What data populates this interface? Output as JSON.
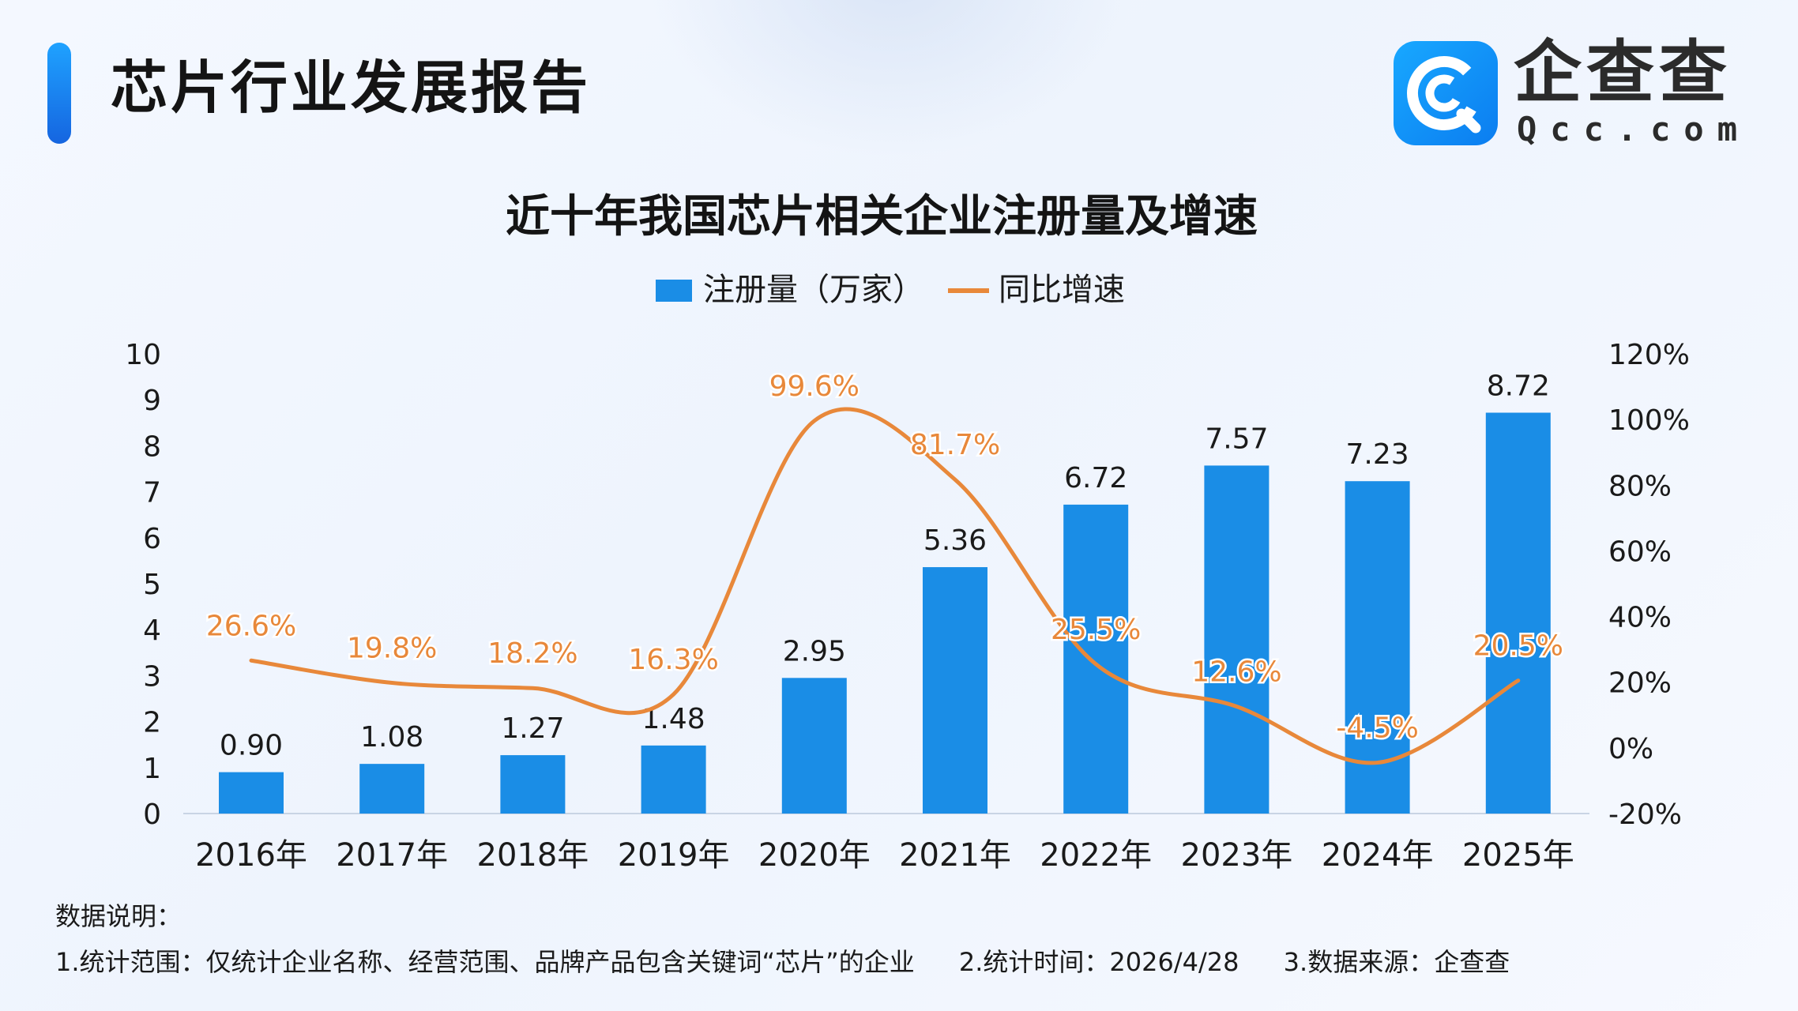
{
  "header": {
    "title": "芯片行业发展报告",
    "logo_cn": "企查查",
    "logo_en": "Qcc.com"
  },
  "colors": {
    "bar": "#1a8de6",
    "line": "#e8883a",
    "line_label": "#e8883a",
    "accent": "#1a7ef0"
  },
  "chart_data": {
    "type": "bar",
    "title": "近十年我国芯片相关企业注册量及增速",
    "categories": [
      "2016年",
      "2017年",
      "2018年",
      "2019年",
      "2020年",
      "2021年",
      "2022年",
      "2023年",
      "2024年",
      "2025年"
    ],
    "series": [
      {
        "name": "注册量（万家）",
        "type": "bar",
        "axis": "left",
        "values": [
          0.9,
          1.08,
          1.27,
          1.48,
          2.95,
          5.36,
          6.72,
          7.57,
          7.23,
          8.72
        ],
        "labels": [
          "0.90",
          "1.08",
          "1.27",
          "1.48",
          "2.95",
          "5.36",
          "6.72",
          "7.57",
          "7.23",
          "8.72"
        ]
      },
      {
        "name": "同比增速",
        "type": "line",
        "axis": "right",
        "values": [
          26.6,
          19.8,
          18.2,
          16.3,
          99.6,
          81.7,
          25.5,
          12.6,
          -4.5,
          20.5
        ],
        "labels": [
          "26.6%",
          "19.8%",
          "18.2%",
          "16.3%",
          "99.6%",
          "81.7%",
          "25.5%",
          "12.6%",
          "-4.5%",
          "20.5%"
        ]
      }
    ],
    "y_left": {
      "min": 0,
      "max": 10,
      "ticks": [
        "0",
        "1",
        "2",
        "3",
        "4",
        "5",
        "6",
        "7",
        "8",
        "9",
        "10"
      ]
    },
    "y_right": {
      "min": -20,
      "max": 120,
      "ticks": [
        "-20%",
        "0%",
        "20%",
        "40%",
        "60%",
        "80%",
        "100%",
        "120%"
      ]
    },
    "legend_position": "top-center",
    "grid": false
  },
  "notes": {
    "heading": "数据说明：",
    "items": [
      "1.统计范围：仅统计企业名称、经营范围、品牌产品包含关键词“芯片”的企业",
      "2.统计时间：2026/4/28",
      "3.数据来源：企查查"
    ]
  }
}
